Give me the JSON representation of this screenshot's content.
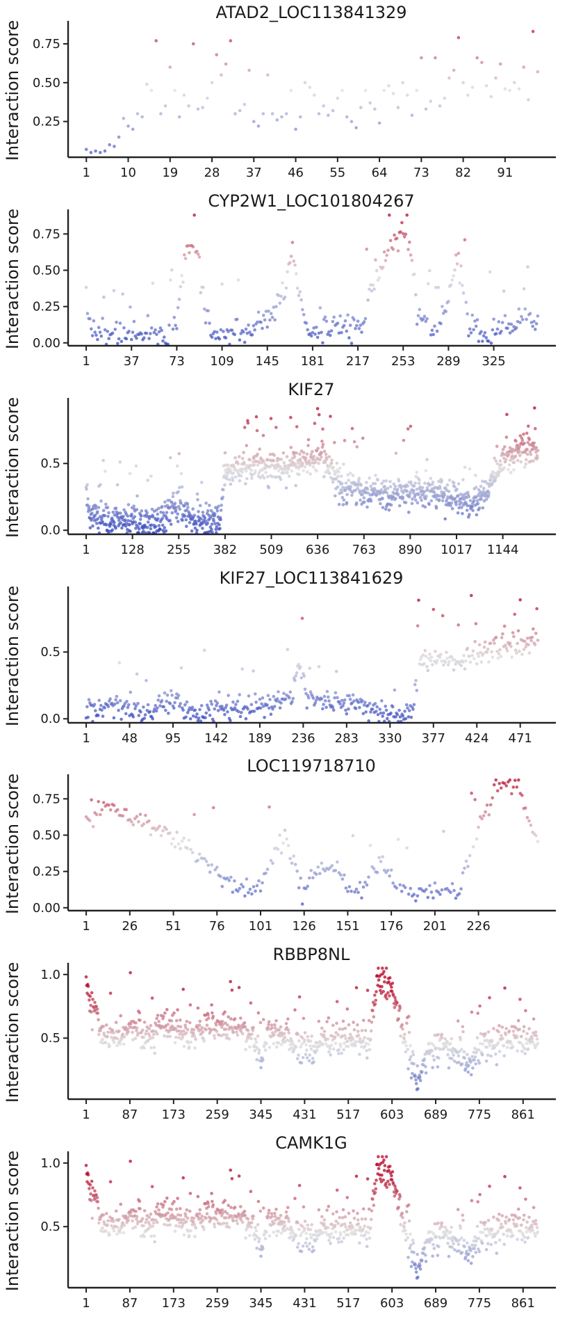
{
  "chart_data": [
    {
      "type": "scatter",
      "title": "ATAD2_LOC113841329",
      "ylabel": "Interaction score",
      "n": 98,
      "xticks": [
        1,
        10,
        19,
        28,
        37,
        46,
        55,
        64,
        73,
        82,
        91
      ],
      "yticks": [
        0.25,
        0.5,
        0.75
      ],
      "ylim": [
        0.02,
        0.88
      ],
      "colormap": "coolwarm",
      "points": [
        [
          1,
          0.07
        ],
        [
          2,
          0.05
        ],
        [
          3,
          0.06
        ],
        [
          4,
          0.05
        ],
        [
          5,
          0.06
        ],
        [
          6,
          0.1
        ],
        [
          7,
          0.09
        ],
        [
          8,
          0.15
        ],
        [
          9,
          0.27
        ],
        [
          10,
          0.22
        ],
        [
          11,
          0.2
        ],
        [
          12,
          0.3
        ],
        [
          13,
          0.28
        ],
        [
          14,
          0.49
        ],
        [
          15,
          0.45
        ],
        [
          16,
          0.77
        ],
        [
          17,
          0.3
        ],
        [
          18,
          0.35
        ],
        [
          19,
          0.6
        ],
        [
          20,
          0.45
        ],
        [
          21,
          0.28
        ],
        [
          22,
          0.42
        ],
        [
          23,
          0.35
        ],
        [
          24,
          0.75
        ],
        [
          25,
          0.33
        ],
        [
          26,
          0.34
        ],
        [
          27,
          0.4
        ],
        [
          28,
          0.5
        ],
        [
          29,
          0.68
        ],
        [
          30,
          0.55
        ],
        [
          31,
          0.62
        ],
        [
          32,
          0.77
        ],
        [
          33,
          0.3
        ],
        [
          34,
          0.32
        ],
        [
          35,
          0.36
        ],
        [
          36,
          0.58
        ],
        [
          37,
          0.25
        ],
        [
          38,
          0.22
        ],
        [
          39,
          0.3
        ],
        [
          40,
          0.55
        ],
        [
          41,
          0.3
        ],
        [
          42,
          0.26
        ],
        [
          43,
          0.28
        ],
        [
          44,
          0.3
        ],
        [
          45,
          0.45
        ],
        [
          46,
          0.2
        ],
        [
          47,
          0.28
        ],
        [
          48,
          0.5
        ],
        [
          49,
          0.47
        ],
        [
          50,
          0.42
        ],
        [
          51,
          0.3
        ],
        [
          52,
          0.35
        ],
        [
          53,
          0.29
        ],
        [
          54,
          0.32
        ],
        [
          55,
          0.4
        ],
        [
          56,
          0.45
        ],
        [
          57,
          0.28
        ],
        [
          58,
          0.25
        ],
        [
          59,
          0.21
        ],
        [
          60,
          0.34
        ],
        [
          61,
          0.45
        ],
        [
          62,
          0.37
        ],
        [
          63,
          0.33
        ],
        [
          64,
          0.24
        ],
        [
          65,
          0.45
        ],
        [
          66,
          0.48
        ],
        [
          67,
          0.43
        ],
        [
          68,
          0.34
        ],
        [
          69,
          0.5
        ],
        [
          70,
          0.42
        ],
        [
          71,
          0.29
        ],
        [
          72,
          0.45
        ],
        [
          73,
          0.66
        ],
        [
          74,
          0.33
        ],
        [
          75,
          0.38
        ],
        [
          76,
          0.66
        ],
        [
          77,
          0.35
        ],
        [
          78,
          0.4
        ],
        [
          79,
          0.53
        ],
        [
          80,
          0.58
        ],
        [
          81,
          0.79
        ],
        [
          82,
          0.5
        ],
        [
          83,
          0.42
        ],
        [
          84,
          0.47
        ],
        [
          85,
          0.66
        ],
        [
          86,
          0.63
        ],
        [
          87,
          0.48
        ],
        [
          88,
          0.41
        ],
        [
          89,
          0.53
        ],
        [
          90,
          0.62
        ],
        [
          91,
          0.46
        ],
        [
          92,
          0.45
        ],
        [
          93,
          0.5
        ],
        [
          94,
          0.46
        ],
        [
          95,
          0.6
        ],
        [
          96,
          0.39
        ],
        [
          97,
          0.83
        ],
        [
          98,
          0.57
        ]
      ]
    },
    {
      "type": "scatter",
      "title": "CYP2W1_LOC101804267",
      "ylabel": "Interaction score",
      "n": 360,
      "xticks": [
        1,
        37,
        73,
        109,
        145,
        181,
        217,
        253,
        289,
        325
      ],
      "yticks": [
        0.0,
        0.25,
        0.5,
        0.75
      ],
      "ylim": [
        -0.02,
        0.9
      ],
      "colormap": "coolwarm",
      "seed": 2,
      "noise": 0.045,
      "profile": [
        [
          1,
          0.32
        ],
        [
          5,
          0.08
        ],
        [
          20,
          0.05
        ],
        [
          40,
          0.05
        ],
        [
          55,
          0.07
        ],
        [
          65,
          0.05
        ],
        [
          73,
          0.2
        ],
        [
          78,
          0.5
        ],
        [
          82,
          0.65
        ],
        [
          90,
          0.58
        ],
        [
          95,
          0.3
        ],
        [
          100,
          0.08
        ],
        [
          120,
          0.06
        ],
        [
          135,
          0.1
        ],
        [
          150,
          0.2
        ],
        [
          160,
          0.45
        ],
        [
          165,
          0.62
        ],
        [
          170,
          0.35
        ],
        [
          175,
          0.08
        ],
        [
          200,
          0.1
        ],
        [
          220,
          0.08
        ],
        [
          230,
          0.45
        ],
        [
          240,
          0.6
        ],
        [
          250,
          0.75
        ],
        [
          258,
          0.7
        ],
        [
          265,
          0.2
        ],
        [
          280,
          0.08
        ],
        [
          290,
          0.35
        ],
        [
          295,
          0.6
        ],
        [
          300,
          0.45
        ],
        [
          305,
          0.1
        ],
        [
          320,
          0.05
        ],
        [
          340,
          0.1
        ],
        [
          350,
          0.2
        ],
        [
          355,
          0.12
        ],
        [
          360,
          0.15
        ]
      ]
    },
    {
      "type": "scatter",
      "title": "KIF27",
      "ylabel": "Interaction score",
      "n": 1240,
      "xticks": [
        1,
        128,
        255,
        382,
        509,
        636,
        763,
        890,
        1017,
        1144
      ],
      "yticks": [
        0.0,
        0.5
      ],
      "ylim": [
        -0.03,
        0.97
      ],
      "colormap": "coolwarm",
      "seed": 3,
      "noise": 0.06,
      "profile": [
        [
          1,
          0.35
        ],
        [
          10,
          0.1
        ],
        [
          130,
          0.07
        ],
        [
          200,
          0.07
        ],
        [
          250,
          0.2
        ],
        [
          300,
          0.07
        ],
        [
          370,
          0.07
        ],
        [
          380,
          0.45
        ],
        [
          420,
          0.45
        ],
        [
          480,
          0.5
        ],
        [
          540,
          0.45
        ],
        [
          600,
          0.5
        ],
        [
          640,
          0.55
        ],
        [
          690,
          0.4
        ],
        [
          700,
          0.3
        ],
        [
          760,
          0.3
        ],
        [
          830,
          0.25
        ],
        [
          900,
          0.3
        ],
        [
          960,
          0.3
        ],
        [
          1000,
          0.25
        ],
        [
          1060,
          0.2
        ],
        [
          1100,
          0.3
        ],
        [
          1140,
          0.5
        ],
        [
          1200,
          0.6
        ],
        [
          1240,
          0.6
        ]
      ]
    },
    {
      "type": "scatter",
      "title": "KIF27_LOC113841629",
      "ylabel": "Interaction score",
      "n": 490,
      "xticks": [
        1,
        48,
        95,
        142,
        189,
        236,
        283,
        330,
        377,
        424,
        471
      ],
      "yticks": [
        0.0,
        0.5
      ],
      "ylim": [
        -0.03,
        0.97
      ],
      "colormap": "coolwarm",
      "seed": 4,
      "noise": 0.045,
      "profile": [
        [
          1,
          0.05
        ],
        [
          30,
          0.1
        ],
        [
          60,
          0.05
        ],
        [
          95,
          0.15
        ],
        [
          110,
          0.05
        ],
        [
          150,
          0.08
        ],
        [
          190,
          0.1
        ],
        [
          220,
          0.15
        ],
        [
          235,
          0.4
        ],
        [
          240,
          0.15
        ],
        [
          290,
          0.12
        ],
        [
          320,
          0.05
        ],
        [
          355,
          0.05
        ],
        [
          360,
          0.45
        ],
        [
          400,
          0.45
        ],
        [
          430,
          0.5
        ],
        [
          470,
          0.55
        ],
        [
          490,
          0.6
        ]
      ]
    },
    {
      "type": "scatter",
      "title": "LOC119718710",
      "ylabel": "Interaction score",
      "n": 260,
      "xticks": [
        1,
        26,
        51,
        76,
        101,
        126,
        151,
        176,
        201,
        226
      ],
      "yticks": [
        0.0,
        0.25,
        0.5,
        0.75
      ],
      "ylim": [
        -0.02,
        0.9
      ],
      "colormap": "coolwarm",
      "seed": 5,
      "noise": 0.035,
      "profile": [
        [
          1,
          0.6
        ],
        [
          15,
          0.7
        ],
        [
          40,
          0.55
        ],
        [
          55,
          0.45
        ],
        [
          70,
          0.3
        ],
        [
          85,
          0.15
        ],
        [
          95,
          0.12
        ],
        [
          110,
          0.35
        ],
        [
          115,
          0.5
        ],
        [
          125,
          0.12
        ],
        [
          135,
          0.3
        ],
        [
          145,
          0.25
        ],
        [
          155,
          0.1
        ],
        [
          170,
          0.3
        ],
        [
          185,
          0.1
        ],
        [
          200,
          0.1
        ],
        [
          210,
          0.12
        ],
        [
          215,
          0.1
        ],
        [
          225,
          0.5
        ],
        [
          235,
          0.82
        ],
        [
          245,
          0.85
        ],
        [
          252,
          0.75
        ],
        [
          260,
          0.45
        ]
      ]
    },
    {
      "type": "scatter",
      "title": "RBBP8NL",
      "ylabel": "Interaction score",
      "n": 890,
      "xticks": [
        1,
        87,
        173,
        259,
        345,
        431,
        517,
        603,
        689,
        775,
        861
      ],
      "yticks": [
        0.5,
        1.0
      ],
      "ylim": [
        0.02,
        1.07
      ],
      "colormap": "coolwarm",
      "seed": 6,
      "noise": 0.06,
      "profile": [
        [
          1,
          0.95
        ],
        [
          10,
          0.8
        ],
        [
          30,
          0.55
        ],
        [
          60,
          0.5
        ],
        [
          90,
          0.6
        ],
        [
          120,
          0.5
        ],
        [
          150,
          0.6
        ],
        [
          200,
          0.55
        ],
        [
          250,
          0.58
        ],
        [
          300,
          0.6
        ],
        [
          330,
          0.5
        ],
        [
          345,
          0.3
        ],
        [
          360,
          0.55
        ],
        [
          420,
          0.45
        ],
        [
          500,
          0.5
        ],
        [
          560,
          0.5
        ],
        [
          575,
          0.95
        ],
        [
          600,
          0.9
        ],
        [
          620,
          0.6
        ],
        [
          640,
          0.3
        ],
        [
          655,
          0.1
        ],
        [
          665,
          0.35
        ],
        [
          700,
          0.45
        ],
        [
          760,
          0.3
        ],
        [
          780,
          0.45
        ],
        [
          830,
          0.5
        ],
        [
          890,
          0.5
        ]
      ]
    },
    {
      "type": "scatter",
      "title": "CAMK1G",
      "ylabel": "Interaction score",
      "n": 890,
      "xticks": [
        1,
        87,
        173,
        259,
        345,
        431,
        517,
        603,
        689,
        775,
        861
      ],
      "yticks": [
        0.5,
        1.0
      ],
      "ylim": [
        0.02,
        1.07
      ],
      "colormap": "coolwarm",
      "seed": 6,
      "noise": 0.06,
      "profile": [
        [
          1,
          0.95
        ],
        [
          10,
          0.8
        ],
        [
          30,
          0.55
        ],
        [
          60,
          0.5
        ],
        [
          90,
          0.6
        ],
        [
          120,
          0.5
        ],
        [
          150,
          0.6
        ],
        [
          200,
          0.55
        ],
        [
          250,
          0.58
        ],
        [
          300,
          0.6
        ],
        [
          330,
          0.5
        ],
        [
          345,
          0.3
        ],
        [
          360,
          0.55
        ],
        [
          420,
          0.45
        ],
        [
          500,
          0.5
        ],
        [
          560,
          0.5
        ],
        [
          575,
          0.95
        ],
        [
          600,
          0.9
        ],
        [
          620,
          0.6
        ],
        [
          640,
          0.3
        ],
        [
          655,
          0.1
        ],
        [
          665,
          0.35
        ],
        [
          700,
          0.45
        ],
        [
          760,
          0.3
        ],
        [
          780,
          0.45
        ],
        [
          830,
          0.5
        ],
        [
          890,
          0.5
        ]
      ]
    }
  ]
}
